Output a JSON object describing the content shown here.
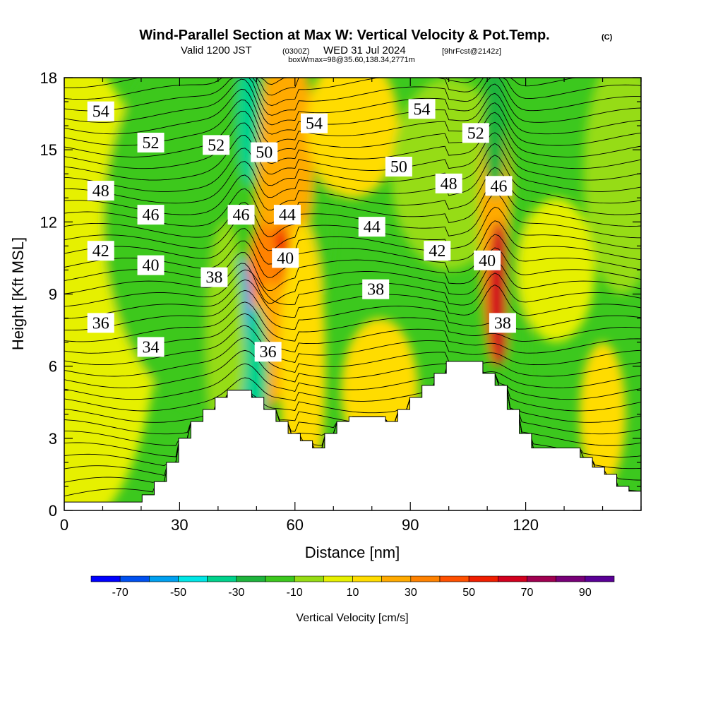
{
  "title": {
    "main": "Wind-Parallel Section at Max W: Vertical Velocity & Pot.Temp.",
    "main_mark": "(C)",
    "valid_a": "Valid 1200 JST",
    "valid_b": "(0300Z)",
    "valid_c": "WED 31 Jul 2024",
    "valid_d": "[9hrFcst@2142z]",
    "box": "boxWmax=98@35.60,138.34,2771m"
  },
  "chart_data": {
    "type": "heatmap",
    "xlabel": "Distance [nm]",
    "ylabel": "Height [Kft MSL]",
    "xlim": [
      0,
      150
    ],
    "ylim": [
      0,
      18
    ],
    "x_ticks": [
      0,
      30,
      60,
      90,
      120
    ],
    "y_ticks": [
      0,
      3,
      6,
      9,
      12,
      15,
      18
    ],
    "grid": false,
    "colorbar": {
      "label": "Vertical Velocity [cm/s]",
      "placement": "bottom",
      "bounds": [
        -80,
        -70,
        -60,
        -50,
        -40,
        -30,
        -20,
        -10,
        0,
        10,
        20,
        30,
        40,
        50,
        60,
        70,
        80,
        90,
        100
      ],
      "tick_labels": [
        "-70",
        "-50",
        "-30",
        "-10",
        "10",
        "30",
        "50",
        "70",
        "90"
      ],
      "tick_values": [
        -70,
        -50,
        -30,
        -10,
        10,
        30,
        50,
        70,
        90
      ],
      "colors": [
        "#0000ff",
        "#0050f0",
        "#00a0f0",
        "#00e6e6",
        "#00d28c",
        "#1eb43c",
        "#3cc81e",
        "#96dc14",
        "#e6f000",
        "#ffdc00",
        "#ffaa00",
        "#ff8200",
        "#ff5000",
        "#f01e00",
        "#d2001e",
        "#a00050",
        "#780078",
        "#5a0096"
      ]
    },
    "terrain": [
      [
        0,
        0.35
      ],
      [
        32,
        0.35
      ],
      [
        32,
        0.65
      ],
      [
        37,
        0.65
      ],
      [
        37,
        1.2
      ],
      [
        42,
        1.2
      ],
      [
        42,
        2.0
      ],
      [
        47,
        2.0
      ],
      [
        47,
        3.0
      ],
      [
        52,
        3.0
      ],
      [
        52,
        3.7
      ],
      [
        57,
        3.7
      ],
      [
        57,
        4.2
      ],
      [
        62,
        4.2
      ],
      [
        62,
        4.7
      ],
      [
        67,
        4.7
      ],
      [
        67,
        5.0
      ],
      [
        77,
        5.0
      ],
      [
        77,
        4.7
      ],
      [
        82,
        4.7
      ],
      [
        82,
        4.2
      ],
      [
        87,
        4.2
      ],
      [
        87,
        3.7
      ],
      [
        92,
        3.7
      ],
      [
        92,
        3.2
      ],
      [
        97,
        3.2
      ],
      [
        97,
        2.9
      ],
      [
        102,
        2.9
      ],
      [
        102,
        2.6
      ],
      [
        107,
        2.6
      ],
      [
        107,
        3.2
      ],
      [
        112,
        3.2
      ],
      [
        112,
        3.7
      ],
      [
        117,
        3.7
      ],
      [
        117,
        3.9
      ],
      [
        132,
        3.9
      ],
      [
        132,
        3.7
      ],
      [
        137,
        3.7
      ],
      [
        137,
        4.2
      ],
      [
        142,
        4.2
      ],
      [
        142,
        4.7
      ],
      [
        147,
        4.7
      ],
      [
        147,
        5.2
      ],
      [
        152,
        5.2
      ],
      [
        152,
        5.7
      ],
      [
        157,
        5.7
      ],
      [
        157,
        6.2
      ],
      [
        172,
        6.2
      ],
      [
        172,
        5.7
      ],
      [
        177,
        5.7
      ],
      [
        177,
        5.2
      ],
      [
        182,
        5.2
      ],
      [
        182,
        4.2
      ],
      [
        187,
        4.2
      ],
      [
        187,
        3.2
      ],
      [
        192,
        3.2
      ],
      [
        192,
        2.6
      ],
      [
        212,
        2.6
      ],
      [
        212,
        2.2
      ],
      [
        217,
        2.2
      ],
      [
        217,
        1.8
      ],
      [
        222,
        1.8
      ],
      [
        222,
        1.5
      ],
      [
        227,
        1.5
      ],
      [
        227,
        1.0
      ],
      [
        232,
        1.0
      ],
      [
        232,
        0.8
      ],
      [
        237,
        0.8
      ],
      [
        237,
        0
      ]
    ],
    "w_blobs": [
      {
        "x": 0,
        "y": 9,
        "rx": 25,
        "ry": 10,
        "w": 5
      },
      {
        "x": 40,
        "y": 12,
        "rx": 30,
        "ry": 8,
        "w": -12
      },
      {
        "x": 55,
        "y": 12,
        "rx": 5,
        "ry": 7,
        "w": 25
      },
      {
        "x": 57,
        "y": 9,
        "rx": 4,
        "ry": 3,
        "w": 55
      },
      {
        "x": 52,
        "y": 8,
        "rx": 5,
        "ry": 4,
        "w": 35
      },
      {
        "x": 60,
        "y": 15,
        "rx": 5,
        "ry": 4,
        "w": 25
      },
      {
        "x": 54,
        "y": 7,
        "rx": 6,
        "ry": 2.5,
        "w": 20
      },
      {
        "x": 48,
        "y": 16.5,
        "rx": 3,
        "ry": 3,
        "w": -35
      },
      {
        "x": 46,
        "y": 7.5,
        "rx": 3,
        "ry": 3,
        "w": -60
      },
      {
        "x": 50,
        "y": 5.5,
        "rx": 3,
        "ry": 3,
        "w": -40
      },
      {
        "x": 42,
        "y": 7,
        "rx": 5,
        "ry": 5,
        "w": -10
      },
      {
        "x": 62,
        "y": 6,
        "rx": 6,
        "ry": 6,
        "w": 10
      },
      {
        "x": 75,
        "y": 16,
        "rx": 12,
        "ry": 3,
        "w": 15
      },
      {
        "x": 82,
        "y": 5,
        "rx": 10,
        "ry": 3,
        "w": 10
      },
      {
        "x": 100,
        "y": 14,
        "rx": 15,
        "ry": 4,
        "w": -10
      },
      {
        "x": 112,
        "y": 12,
        "rx": 4,
        "ry": 6,
        "w": 25
      },
      {
        "x": 113,
        "y": 9,
        "rx": 3,
        "ry": 3,
        "w": 65
      },
      {
        "x": 112,
        "y": 16,
        "rx": 3,
        "ry": 3,
        "w": -30
      },
      {
        "x": 118,
        "y": 9,
        "rx": 3,
        "ry": 6,
        "w": -12
      },
      {
        "x": 128,
        "y": 10,
        "rx": 10,
        "ry": 3,
        "w": 5
      },
      {
        "x": 140,
        "y": 4,
        "rx": 6,
        "ry": 3,
        "w": 15
      },
      {
        "x": 145,
        "y": 14,
        "rx": 10,
        "ry": 5,
        "w": -8
      }
    ],
    "theta_labels": [
      {
        "text": "54",
        "x": 9.5,
        "y": 16.6
      },
      {
        "text": "52",
        "x": 22.5,
        "y": 15.3
      },
      {
        "text": "48",
        "x": 9.5,
        "y": 13.3
      },
      {
        "text": "46",
        "x": 22.5,
        "y": 12.3
      },
      {
        "text": "42",
        "x": 9.5,
        "y": 10.8
      },
      {
        "text": "40",
        "x": 22.5,
        "y": 10.2
      },
      {
        "text": "36",
        "x": 9.5,
        "y": 7.8
      },
      {
        "text": "34",
        "x": 22.5,
        "y": 6.8
      },
      {
        "text": "52",
        "x": 39.5,
        "y": 15.2
      },
      {
        "text": "50",
        "x": 52,
        "y": 14.9
      },
      {
        "text": "46",
        "x": 46,
        "y": 12.3
      },
      {
        "text": "44",
        "x": 58,
        "y": 12.3
      },
      {
        "text": "40",
        "x": 57.5,
        "y": 10.5
      },
      {
        "text": "38",
        "x": 39,
        "y": 9.7
      },
      {
        "text": "36",
        "x": 53,
        "y": 6.6
      },
      {
        "text": "54",
        "x": 65,
        "y": 16.1
      },
      {
        "text": "50",
        "x": 87,
        "y": 14.3
      },
      {
        "text": "44",
        "x": 80,
        "y": 11.8
      },
      {
        "text": "38",
        "x": 81,
        "y": 9.2
      },
      {
        "text": "54",
        "x": 93,
        "y": 16.7
      },
      {
        "text": "52",
        "x": 107,
        "y": 15.7
      },
      {
        "text": "48",
        "x": 100,
        "y": 13.6
      },
      {
        "text": "42",
        "x": 97,
        "y": 10.8
      },
      {
        "text": "46",
        "x": 113,
        "y": 13.5
      },
      {
        "text": "40",
        "x": 110,
        "y": 10.4
      },
      {
        "text": "38",
        "x": 114,
        "y": 7.8
      }
    ]
  }
}
